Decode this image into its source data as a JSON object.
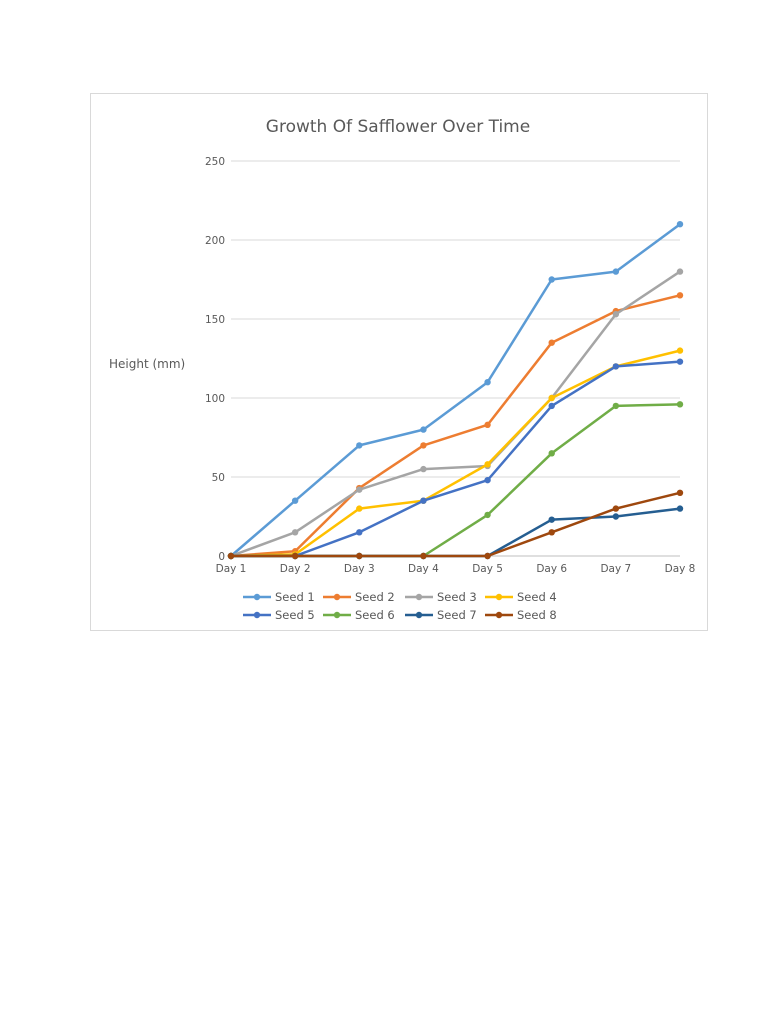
{
  "chart_data": {
    "type": "line",
    "title": "Growth Of Safflower Over Time",
    "xlabel": "",
    "ylabel": "Height (mm)",
    "categories": [
      "Day 1",
      "Day 2",
      "Day 3",
      "Day 4",
      "Day 5",
      "Day 6",
      "Day 7",
      "Day 8"
    ],
    "ylim": [
      0,
      250
    ],
    "yticks": [
      0,
      50,
      100,
      150,
      200,
      250
    ],
    "grid": "horizontal",
    "legend": "bottom",
    "series": [
      {
        "name": "Seed 1",
        "color": "#5b9bd5",
        "values": [
          0,
          35,
          70,
          80,
          110,
          175,
          180,
          210
        ]
      },
      {
        "name": "Seed 2",
        "color": "#ed7d31",
        "values": [
          0,
          3,
          43,
          70,
          83,
          135,
          155,
          165
        ]
      },
      {
        "name": "Seed 3",
        "color": "#a5a5a5",
        "values": [
          0,
          15,
          42,
          55,
          57,
          100,
          153,
          180
        ]
      },
      {
        "name": "Seed 4",
        "color": "#ffc000",
        "values": [
          0,
          1,
          30,
          35,
          58,
          100,
          120,
          130
        ]
      },
      {
        "name": "Seed 5",
        "color": "#4472c4",
        "values": [
          0,
          0,
          15,
          35,
          48,
          95,
          120,
          123
        ]
      },
      {
        "name": "Seed 6",
        "color": "#70ad47",
        "values": [
          0,
          0,
          0,
          0,
          26,
          65,
          95,
          96
        ]
      },
      {
        "name": "Seed 7",
        "color": "#255e91",
        "values": [
          0,
          0,
          0,
          0,
          0,
          23,
          25,
          30
        ]
      },
      {
        "name": "Seed 8",
        "color": "#9e480e",
        "values": [
          0,
          0,
          0,
          0,
          0,
          15,
          30,
          40
        ]
      }
    ]
  }
}
